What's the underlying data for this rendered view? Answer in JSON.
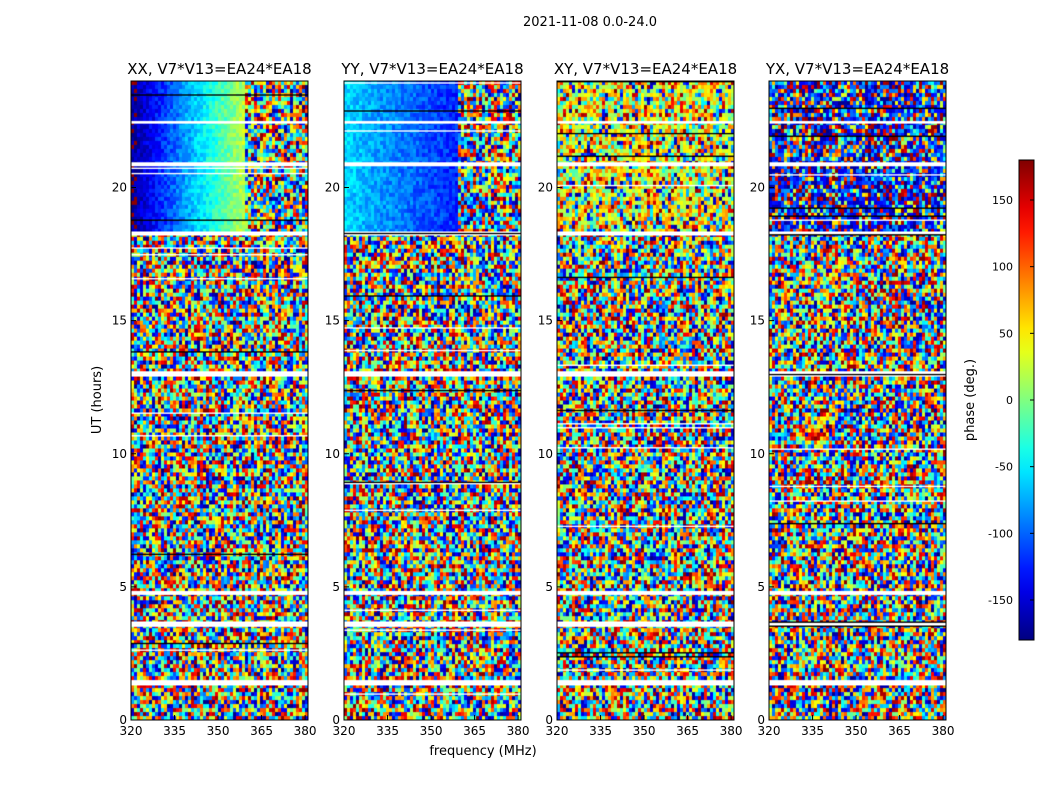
{
  "chart_data": {
    "type": "heatmap",
    "suptitle": "2021-11-08 0.0-24.0",
    "xlabel": "frequency (MHz)",
    "ylabel": "UT (hours)",
    "xlim": [
      320,
      381
    ],
    "ylim": [
      0,
      24
    ],
    "xticks": [
      320,
      335,
      350,
      365,
      380
    ],
    "yticks": [
      0,
      5,
      10,
      15,
      20
    ],
    "panels": [
      {
        "title": "XX, V7*V13=EA24*EA18",
        "pattern": "XX"
      },
      {
        "title": "YY, V7*V13=EA24*EA18",
        "pattern": "YY"
      },
      {
        "title": "XY, V7*V13=EA24*EA18",
        "pattern": "XY"
      },
      {
        "title": "YX, V7*V13=EA24*EA18",
        "pattern": "YX"
      }
    ],
    "colorbar": {
      "label": "phase (deg.)",
      "range": [
        -180,
        180
      ],
      "ticks": [
        -150,
        -100,
        -50,
        0,
        50,
        100,
        150
      ],
      "colormap": "jet"
    },
    "flagged_bands_hours": [
      [
        1.3,
        1.5
      ],
      [
        3.5,
        3.7
      ],
      [
        4.7,
        4.85
      ],
      [
        12.9,
        13.1
      ],
      [
        18.2,
        18.35
      ],
      [
        20.8,
        20.95
      ],
      [
        22.4,
        22.5
      ]
    ],
    "colors": {
      "flagged": "#ffffff",
      "axes": "#000000"
    }
  }
}
